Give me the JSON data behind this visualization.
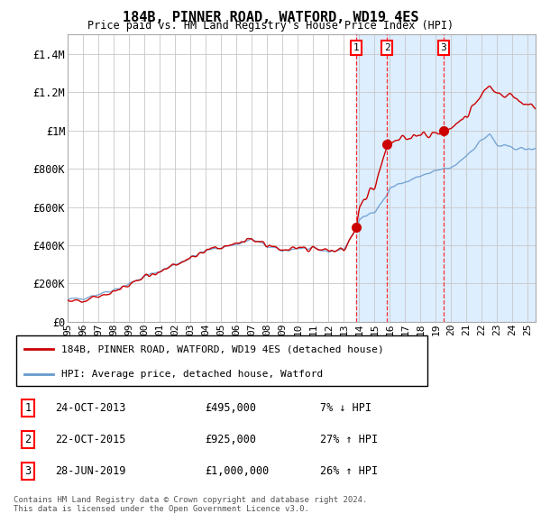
{
  "title": "184B, PINNER ROAD, WATFORD, WD19 4ES",
  "subtitle": "Price paid vs. HM Land Registry's House Price Index (HPI)",
  "background_color": "#ffffff",
  "plot_bg_color": "#ffffff",
  "grid_color": "#c8c8c8",
  "ylim": [
    0,
    1500000
  ],
  "yticks": [
    0,
    200000,
    400000,
    600000,
    800000,
    1000000,
    1200000,
    1400000
  ],
  "ytick_labels": [
    "£0",
    "£200K",
    "£400K",
    "£600K",
    "£800K",
    "£1M",
    "£1.2M",
    "£1.4M"
  ],
  "shade_start_year": 2013.82,
  "shade_color": "#ddeeff",
  "red_line_color": "#cc0000",
  "blue_line_color": "#6699cc",
  "sale_markers": [
    {
      "label": "1",
      "date_x": 2013.82,
      "price": 495000
    },
    {
      "label": "2",
      "date_x": 2015.82,
      "price": 925000
    },
    {
      "label": "3",
      "date_x": 2019.49,
      "price": 1000000
    }
  ],
  "table_rows": [
    {
      "num": "1",
      "date": "24-OCT-2013",
      "price": "£495,000",
      "change": "7% ↓ HPI"
    },
    {
      "num": "2",
      "date": "22-OCT-2015",
      "price": "£925,000",
      "change": "27% ↑ HPI"
    },
    {
      "num": "3",
      "date": "28-JUN-2019",
      "price": "£1,000,000",
      "change": "26% ↑ HPI"
    }
  ],
  "legend_line1": "184B, PINNER ROAD, WATFORD, WD19 4ES (detached house)",
  "legend_line2": "HPI: Average price, detached house, Watford",
  "footer": "Contains HM Land Registry data © Crown copyright and database right 2024.\nThis data is licensed under the Open Government Licence v3.0.",
  "xmin": 1995,
  "xmax": 2025.5,
  "xtick_years": [
    1995,
    1996,
    1997,
    1998,
    1999,
    2000,
    2001,
    2002,
    2003,
    2004,
    2005,
    2006,
    2007,
    2008,
    2009,
    2010,
    2011,
    2012,
    2013,
    2014,
    2015,
    2016,
    2017,
    2018,
    2019,
    2020,
    2021,
    2022,
    2023,
    2024,
    2025
  ]
}
